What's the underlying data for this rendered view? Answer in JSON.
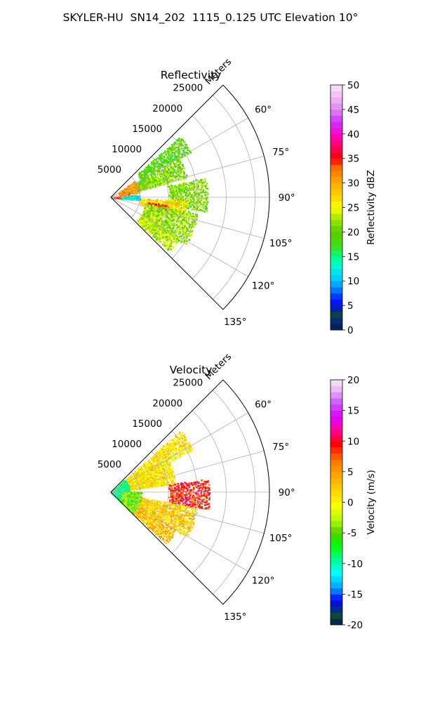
{
  "suptitle": "SKYLER-HU  SN14_202  1115_0.125 UTC Elevation 10°",
  "chart_data": [
    {
      "type": "heatmap",
      "title": "Reflectivity",
      "projection": "polar sector",
      "range_label": "Meters",
      "range_ticks": [
        5000,
        10000,
        15000,
        20000,
        25000
      ],
      "range_max": 27500,
      "azimuth_range_deg": [
        45,
        135
      ],
      "azimuth_gridlines_deg": [
        45,
        60,
        75,
        90,
        105,
        120,
        135
      ],
      "azimuth_tick_labels": [
        "60°",
        "75°",
        "90°",
        "105°",
        "120°",
        "135°"
      ],
      "grid": true,
      "colorbar": {
        "label": "Reflectivity dBZ",
        "min": 0,
        "max": 50,
        "ticks": [
          0,
          5,
          10,
          15,
          20,
          25,
          30,
          35,
          40,
          45,
          50
        ],
        "stops": [
          [
            0,
            "#061a5a"
          ],
          [
            2,
            "#0a2f6e"
          ],
          [
            3.5,
            "#0b4a3a"
          ],
          [
            5,
            "#0000ff"
          ],
          [
            7,
            "#0040ff"
          ],
          [
            9,
            "#00a0ff"
          ],
          [
            11,
            "#00d8ff"
          ],
          [
            13.5,
            "#00ffc8"
          ],
          [
            15,
            "#00ff80"
          ],
          [
            17.5,
            "#4cd90a"
          ],
          [
            20,
            "#55cc00"
          ],
          [
            22.5,
            "#9ee600"
          ],
          [
            25,
            "#ffff00"
          ],
          [
            27.5,
            "#ffd200"
          ],
          [
            30,
            "#ffaa00"
          ],
          [
            33,
            "#ff7000"
          ],
          [
            35,
            "#ff0000"
          ],
          [
            37.5,
            "#ff0066"
          ],
          [
            40,
            "#ff00cc"
          ],
          [
            42.5,
            "#cc33ff"
          ],
          [
            45,
            "#dd88ee"
          ],
          [
            47.5,
            "#eebbf2"
          ],
          [
            50,
            "#fbe6fb"
          ]
        ]
      },
      "echo_regions": [
        {
          "az": [
            48,
            60
          ],
          "range": [
            6000,
            15800
          ],
          "value": 19
        },
        {
          "az": [
            60,
            75
          ],
          "range": [
            4000,
            13500
          ],
          "value": 21
        },
        {
          "az": [
            78,
            98
          ],
          "range": [
            10000,
            16500
          ],
          "value": 21
        },
        {
          "az": [
            92,
            104
          ],
          "range": [
            5000,
            13000
          ],
          "value": 27
        },
        {
          "az": [
            97,
            102
          ],
          "range": [
            6500,
            10000
          ],
          "value": 35
        },
        {
          "az": [
            100,
            122
          ],
          "range": [
            6000,
            15000
          ],
          "value": 22
        },
        {
          "az": [
            120,
            133
          ],
          "range": [
            6000,
            13500
          ],
          "value": 23
        },
        {
          "az": [
            84,
            94
          ],
          "range": [
            1500,
            4800
          ],
          "value": 12
        },
        {
          "az": [
            55,
            80
          ],
          "range": [
            1500,
            5000
          ],
          "value": 31
        },
        {
          "az": [
            82,
            92
          ],
          "range": [
            0,
            1500
          ],
          "value": 33
        }
      ]
    },
    {
      "type": "heatmap",
      "title": "Velocity",
      "projection": "polar sector",
      "range_label": "Meters",
      "range_ticks": [
        5000,
        10000,
        15000,
        20000,
        25000
      ],
      "range_max": 27500,
      "azimuth_range_deg": [
        45,
        135
      ],
      "azimuth_gridlines_deg": [
        45,
        60,
        75,
        90,
        105,
        120,
        135
      ],
      "azimuth_tick_labels": [
        "60°",
        "75°",
        "90°",
        "105°",
        "120°",
        "135°"
      ],
      "grid": true,
      "colorbar": {
        "label": "Velocity (m/s)",
        "min": -20,
        "max": 20,
        "ticks": [
          -20,
          -15,
          -10,
          -5,
          0,
          5,
          10,
          15,
          20
        ],
        "stops": [
          [
            -20,
            "#061a5a"
          ],
          [
            -18.5,
            "#0b4a3a"
          ],
          [
            -16,
            "#0000ff"
          ],
          [
            -14,
            "#00a0ff"
          ],
          [
            -11.5,
            "#00ffff"
          ],
          [
            -9,
            "#00ff80"
          ],
          [
            -7,
            "#00ff00"
          ],
          [
            -5,
            "#55cc00"
          ],
          [
            -3,
            "#aaff00"
          ],
          [
            -0.5,
            "#ffff00"
          ],
          [
            2,
            "#ffd200"
          ],
          [
            4.5,
            "#ffa500"
          ],
          [
            7,
            "#ff7000"
          ],
          [
            9.5,
            "#ff0000"
          ],
          [
            12,
            "#ff00aa"
          ],
          [
            14,
            "#dd00ff"
          ],
          [
            16.5,
            "#cc66ff"
          ],
          [
            18.5,
            "#eebbf2"
          ],
          [
            20,
            "#fbe6fb"
          ]
        ]
      },
      "echo_regions": [
        {
          "az": [
            48,
            62
          ],
          "range": [
            3000,
            16000
          ],
          "value": 1
        },
        {
          "az": [
            62,
            82
          ],
          "range": [
            2000,
            11000
          ],
          "value": 1
        },
        {
          "az": [
            82,
            100
          ],
          "range": [
            10000,
            16800
          ],
          "value": 9
        },
        {
          "az": [
            100,
            120
          ],
          "range": [
            4000,
            15000
          ],
          "value": 2
        },
        {
          "az": [
            120,
            133
          ],
          "range": [
            5000,
            13000
          ],
          "value": 3
        },
        {
          "az": [
            46,
            134
          ],
          "range": [
            0,
            3000
          ],
          "value": -9
        },
        {
          "az": [
            88,
            134
          ],
          "range": [
            2000,
            5000
          ],
          "value": -4
        }
      ]
    }
  ]
}
